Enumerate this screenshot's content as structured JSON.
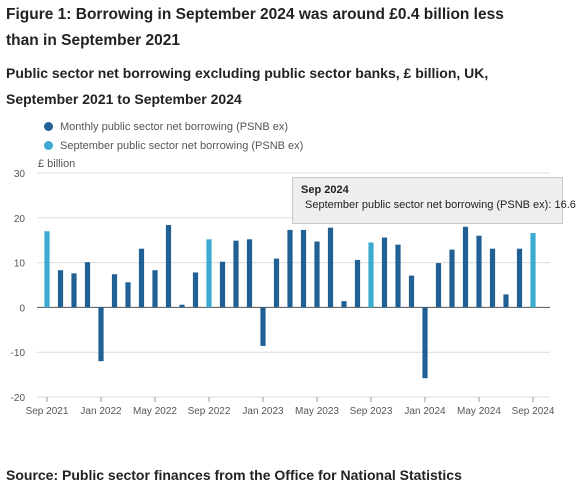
{
  "figure": {
    "title": "Figure 1: Borrowing in September 2024 was around £0.4 billion less than in September 2021",
    "subtitle": "Public sector net borrowing excluding public sector banks, £ billion, UK, September 2021 to September 2024",
    "source": "Source: Public sector finances from the Office for National Statistics"
  },
  "tooltip": {
    "title": "Sep 2024",
    "series_label": "September public sector net borrowing (PSNB ex)",
    "value_text": "16.6",
    "color": "#3ca9d1"
  },
  "chart_data": {
    "type": "bar",
    "title": "Figure 1: Borrowing in September 2024 was around £0.4 billion less than in September 2021",
    "ylabel": "£ billion",
    "xlabel": "",
    "ylim": [
      -20,
      30
    ],
    "yticks": [
      -20,
      -10,
      0,
      10,
      20,
      30
    ],
    "grid": "horizontal",
    "legend_position": "top-left",
    "x_tick_labels": [
      "Sep 2021",
      "Jan 2022",
      "May 2022",
      "Sep 2022",
      "Jan 2023",
      "May 2023",
      "Sep 2023",
      "Jan 2024",
      "May 2024",
      "Sep 2024"
    ],
    "x_tick_indices": [
      0,
      4,
      8,
      12,
      16,
      20,
      24,
      28,
      32,
      36
    ],
    "series": [
      {
        "name": "Monthly public sector net borrowing (PSNB ex)",
        "color": "#206095"
      },
      {
        "name": "September public sector net borrowing (PSNB ex)",
        "color": "#3ca9d1"
      }
    ],
    "months": [
      "Sep 2021",
      "Oct 2021",
      "Nov 2021",
      "Dec 2021",
      "Jan 2022",
      "Feb 2022",
      "Mar 2022",
      "Apr 2022",
      "May 2022",
      "Jun 2022",
      "Jul 2022",
      "Aug 2022",
      "Sep 2022",
      "Oct 2022",
      "Nov 2022",
      "Dec 2022",
      "Jan 2023",
      "Feb 2023",
      "Mar 2023",
      "Apr 2023",
      "May 2023",
      "Jun 2023",
      "Jul 2023",
      "Aug 2023",
      "Sep 2023",
      "Oct 2023",
      "Nov 2023",
      "Dec 2023",
      "Jan 2024",
      "Feb 2024",
      "Mar 2024",
      "Apr 2024",
      "May 2024",
      "Jun 2024",
      "Jul 2024",
      "Aug 2024",
      "Sep 2024"
    ],
    "values": [
      17.0,
      8.3,
      7.6,
      10.1,
      -12.0,
      7.4,
      5.6,
      13.1,
      8.3,
      18.4,
      0.6,
      7.8,
      15.2,
      10.2,
      14.9,
      15.2,
      -8.6,
      10.9,
      17.3,
      17.3,
      14.7,
      17.8,
      1.4,
      10.6,
      14.5,
      15.6,
      14.0,
      7.1,
      -15.8,
      9.9,
      12.9,
      18.0,
      16.0,
      13.1,
      2.9,
      13.1,
      16.6
    ],
    "series_index": [
      1,
      0,
      0,
      0,
      0,
      0,
      0,
      0,
      0,
      0,
      0,
      0,
      1,
      0,
      0,
      0,
      0,
      0,
      0,
      0,
      0,
      0,
      0,
      0,
      1,
      0,
      0,
      0,
      0,
      0,
      0,
      0,
      0,
      0,
      0,
      0,
      1
    ]
  }
}
